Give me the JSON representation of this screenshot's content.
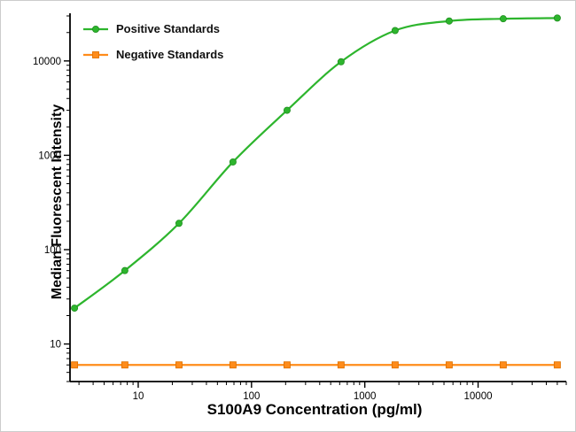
{
  "chart_data": {
    "type": "line",
    "xscale": "log",
    "yscale": "log",
    "xlim": [
      2.5,
      60000
    ],
    "ylim": [
      4,
      32000
    ],
    "x_ticks": [
      10,
      100,
      1000,
      10000
    ],
    "y_ticks": [
      10,
      100,
      1000,
      10000
    ],
    "xlabel": "S100A9 Concentration (pg/ml)",
    "ylabel": "Median Fluorescent Intensity",
    "grid": "off",
    "legend_position": "top-left",
    "axis_color": "#000000",
    "tick_label_color": "#000000",
    "series": [
      {
        "name": "Positive Standards",
        "color": "#2db52d",
        "edge_color": "#1f8f1f",
        "marker": "circle",
        "smooth": true,
        "x": [
          2.74,
          7.62,
          22.9,
          68.6,
          206,
          617,
          1852,
          5556,
          16667,
          50000
        ],
        "y": [
          24,
          60,
          190,
          850,
          3000,
          9800,
          21000,
          26500,
          28000,
          28500
        ]
      },
      {
        "name": "Negative Standards",
        "color": "#ff8c1a",
        "edge_color": "#e07200",
        "marker": "square",
        "smooth": false,
        "x": [
          2.74,
          7.62,
          22.9,
          68.6,
          206,
          617,
          1852,
          5556,
          16667,
          50000
        ],
        "y": [
          6,
          6,
          6,
          6,
          6,
          6,
          6,
          6,
          6,
          6
        ]
      }
    ]
  }
}
